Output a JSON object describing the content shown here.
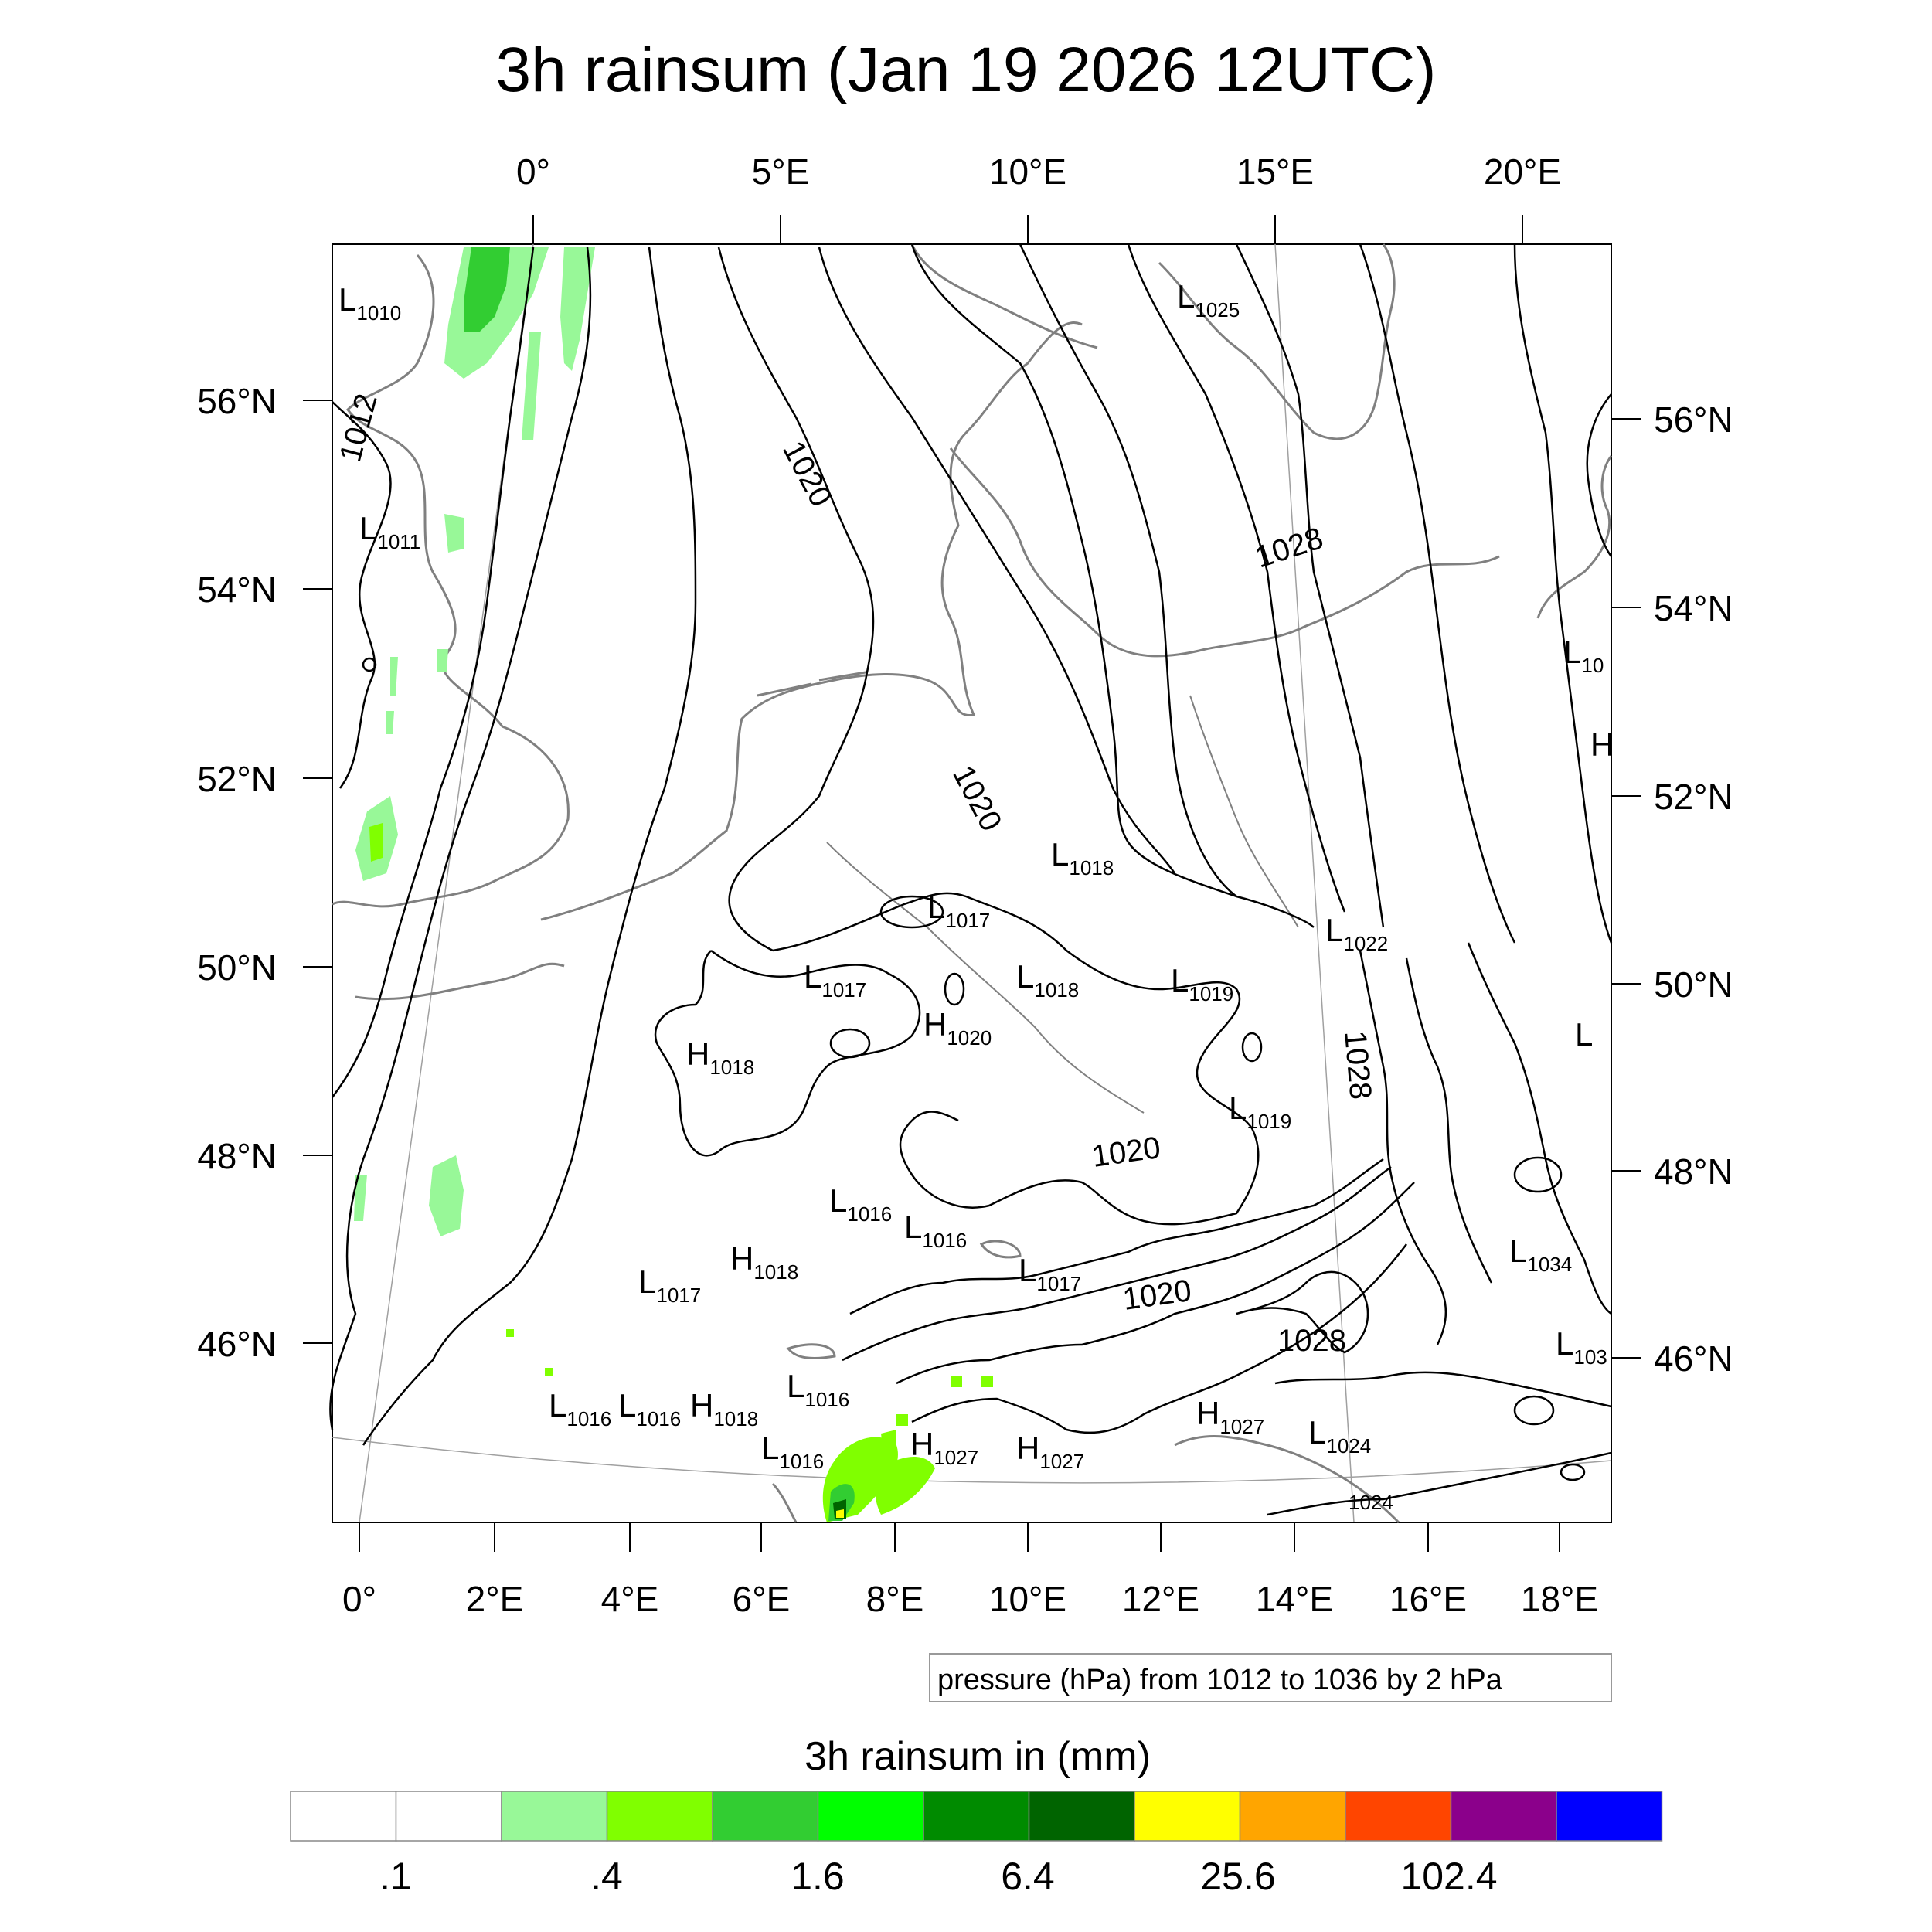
{
  "title": "3h rainsum (Jan 19 2026 12UTC)",
  "top_ticks": [
    {
      "label": "0°",
      "lon": 0
    },
    {
      "label": "5°E",
      "lon": 5
    },
    {
      "label": "10°E",
      "lon": 10
    },
    {
      "label": "15°E",
      "lon": 15
    },
    {
      "label": "20°E",
      "lon": 20
    }
  ],
  "bottom_ticks": [
    {
      "label": "0°",
      "lon": 0
    },
    {
      "label": "2°E",
      "lon": 2
    },
    {
      "label": "4°E",
      "lon": 4
    },
    {
      "label": "6°E",
      "lon": 6
    },
    {
      "label": "8°E",
      "lon": 8
    },
    {
      "label": "10°E",
      "lon": 10
    },
    {
      "label": "12°E",
      "lon": 12
    },
    {
      "label": "14°E",
      "lon": 14
    },
    {
      "label": "16°E",
      "lon": 16
    },
    {
      "label": "18°E",
      "lon": 18
    }
  ],
  "left_ticks": [
    {
      "label": "56°N",
      "lat": 56
    },
    {
      "label": "54°N",
      "lat": 54
    },
    {
      "label": "52°N",
      "lat": 52
    },
    {
      "label": "50°N",
      "lat": 50
    },
    {
      "label": "48°N",
      "lat": 48
    },
    {
      "label": "46°N",
      "lat": 46
    }
  ],
  "right_ticks": [
    {
      "label": "56°N",
      "lat": 56
    },
    {
      "label": "54°N",
      "lat": 54
    },
    {
      "label": "52°N",
      "lat": 52
    },
    {
      "label": "50°N",
      "lat": 50
    },
    {
      "label": "48°N",
      "lat": 48
    },
    {
      "label": "46°N",
      "lat": 46
    }
  ],
  "pressure_centers": [
    {
      "type": "L",
      "value": "1010"
    },
    {
      "type": "L",
      "value": "1011"
    },
    {
      "type": "L",
      "value": "1025"
    },
    {
      "type": "L",
      "value": "1018"
    },
    {
      "type": "L",
      "value": "1017"
    },
    {
      "type": "L",
      "value": "1017"
    },
    {
      "type": "L",
      "value": "1018"
    },
    {
      "type": "L",
      "value": "1019"
    },
    {
      "type": "L",
      "value": "1022"
    },
    {
      "type": "H",
      "value": "1020"
    },
    {
      "type": "H",
      "value": "1018"
    },
    {
      "type": "L",
      "value": "1019"
    },
    {
      "type": "L",
      "value": "1016"
    },
    {
      "type": "L",
      "value": "1016"
    },
    {
      "type": "H",
      "value": "1018"
    },
    {
      "type": "L",
      "value": "1017"
    },
    {
      "type": "L",
      "value": "1017"
    },
    {
      "type": "L",
      "value": "1034"
    },
    {
      "type": "L",
      "value": "1016"
    },
    {
      "type": "L",
      "value": "1016"
    },
    {
      "type": "H",
      "value": "1018"
    },
    {
      "type": "L",
      "value": "1016"
    },
    {
      "type": "L",
      "value": "1016"
    },
    {
      "type": "H",
      "value": "1027"
    },
    {
      "type": "H",
      "value": "1027"
    },
    {
      "type": "H",
      "value": "1027"
    },
    {
      "type": "L",
      "value": "1024"
    },
    {
      "type": "L",
      "value": "1024"
    },
    {
      "type": "L",
      "value": "103"
    },
    {
      "type": "L",
      "value": "10"
    },
    {
      "type": "H",
      "value": ""
    },
    {
      "type": "L",
      "value": ""
    }
  ],
  "isobar_labels": [
    "1012",
    "1020",
    "1020",
    "1028",
    "1028",
    "1020",
    "1020",
    "1028"
  ],
  "contour_info": "pressure (hPa) from 1012 to 1036 by 2 hPa",
  "colorbar": {
    "title": "3h rainsum in (mm)",
    "labels": [
      ".1",
      ".4",
      "1.6",
      "6.4",
      "25.6",
      "102.4"
    ],
    "colors": [
      "#ffffff",
      "#ffffff",
      "#98f898",
      "#80ff00",
      "#32cd32",
      "#00ff00",
      "#008b00",
      "#006400",
      "#ffff00",
      "#ffa500",
      "#ff4500",
      "#8b008b",
      "#0000ff"
    ]
  },
  "colors": {
    "isobar": "#000000",
    "coastline": "#808080",
    "grid": "#a0a0a0"
  }
}
